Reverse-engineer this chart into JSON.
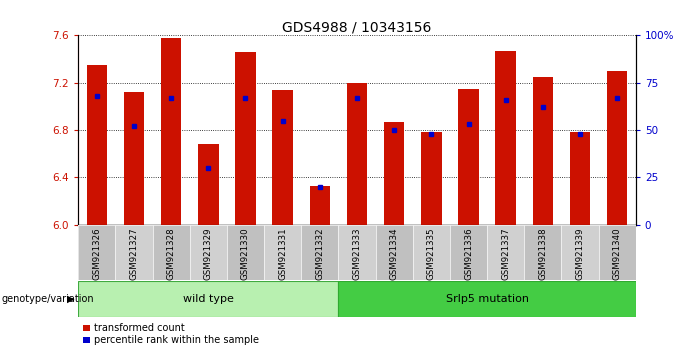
{
  "title": "GDS4988 / 10343156",
  "samples": [
    "GSM921326",
    "GSM921327",
    "GSM921328",
    "GSM921329",
    "GSM921330",
    "GSM921331",
    "GSM921332",
    "GSM921333",
    "GSM921334",
    "GSM921335",
    "GSM921336",
    "GSM921337",
    "GSM921338",
    "GSM921339",
    "GSM921340"
  ],
  "transformed_counts": [
    7.35,
    7.12,
    7.58,
    6.68,
    7.46,
    7.14,
    6.33,
    7.2,
    6.87,
    6.78,
    7.15,
    7.47,
    7.25,
    6.78,
    7.3
  ],
  "percentile_ranks": [
    68,
    52,
    67,
    30,
    67,
    55,
    20,
    67,
    50,
    48,
    53,
    66,
    62,
    48,
    67
  ],
  "ylim": [
    6.0,
    7.6
  ],
  "yticks": [
    6.0,
    6.4,
    6.8,
    7.2,
    7.6
  ],
  "right_yticks": [
    0,
    25,
    50,
    75,
    100
  ],
  "right_ytick_labels": [
    "0",
    "25",
    "50",
    "75",
    "100%"
  ],
  "bar_color": "#cc1100",
  "dot_color": "#0000cc",
  "bar_bottom": 6.0,
  "wild_type_label": "wild type",
  "srlp5_label": "Srlp5 mutation",
  "wt_color": "#b8f0b0",
  "sr_color": "#44cc44",
  "geno_label": "genotype/variation",
  "legend_bar_label": "transformed count",
  "legend_dot_label": "percentile rank within the sample",
  "title_fontsize": 10,
  "tick_fontsize": 7.5,
  "bar_width": 0.55
}
